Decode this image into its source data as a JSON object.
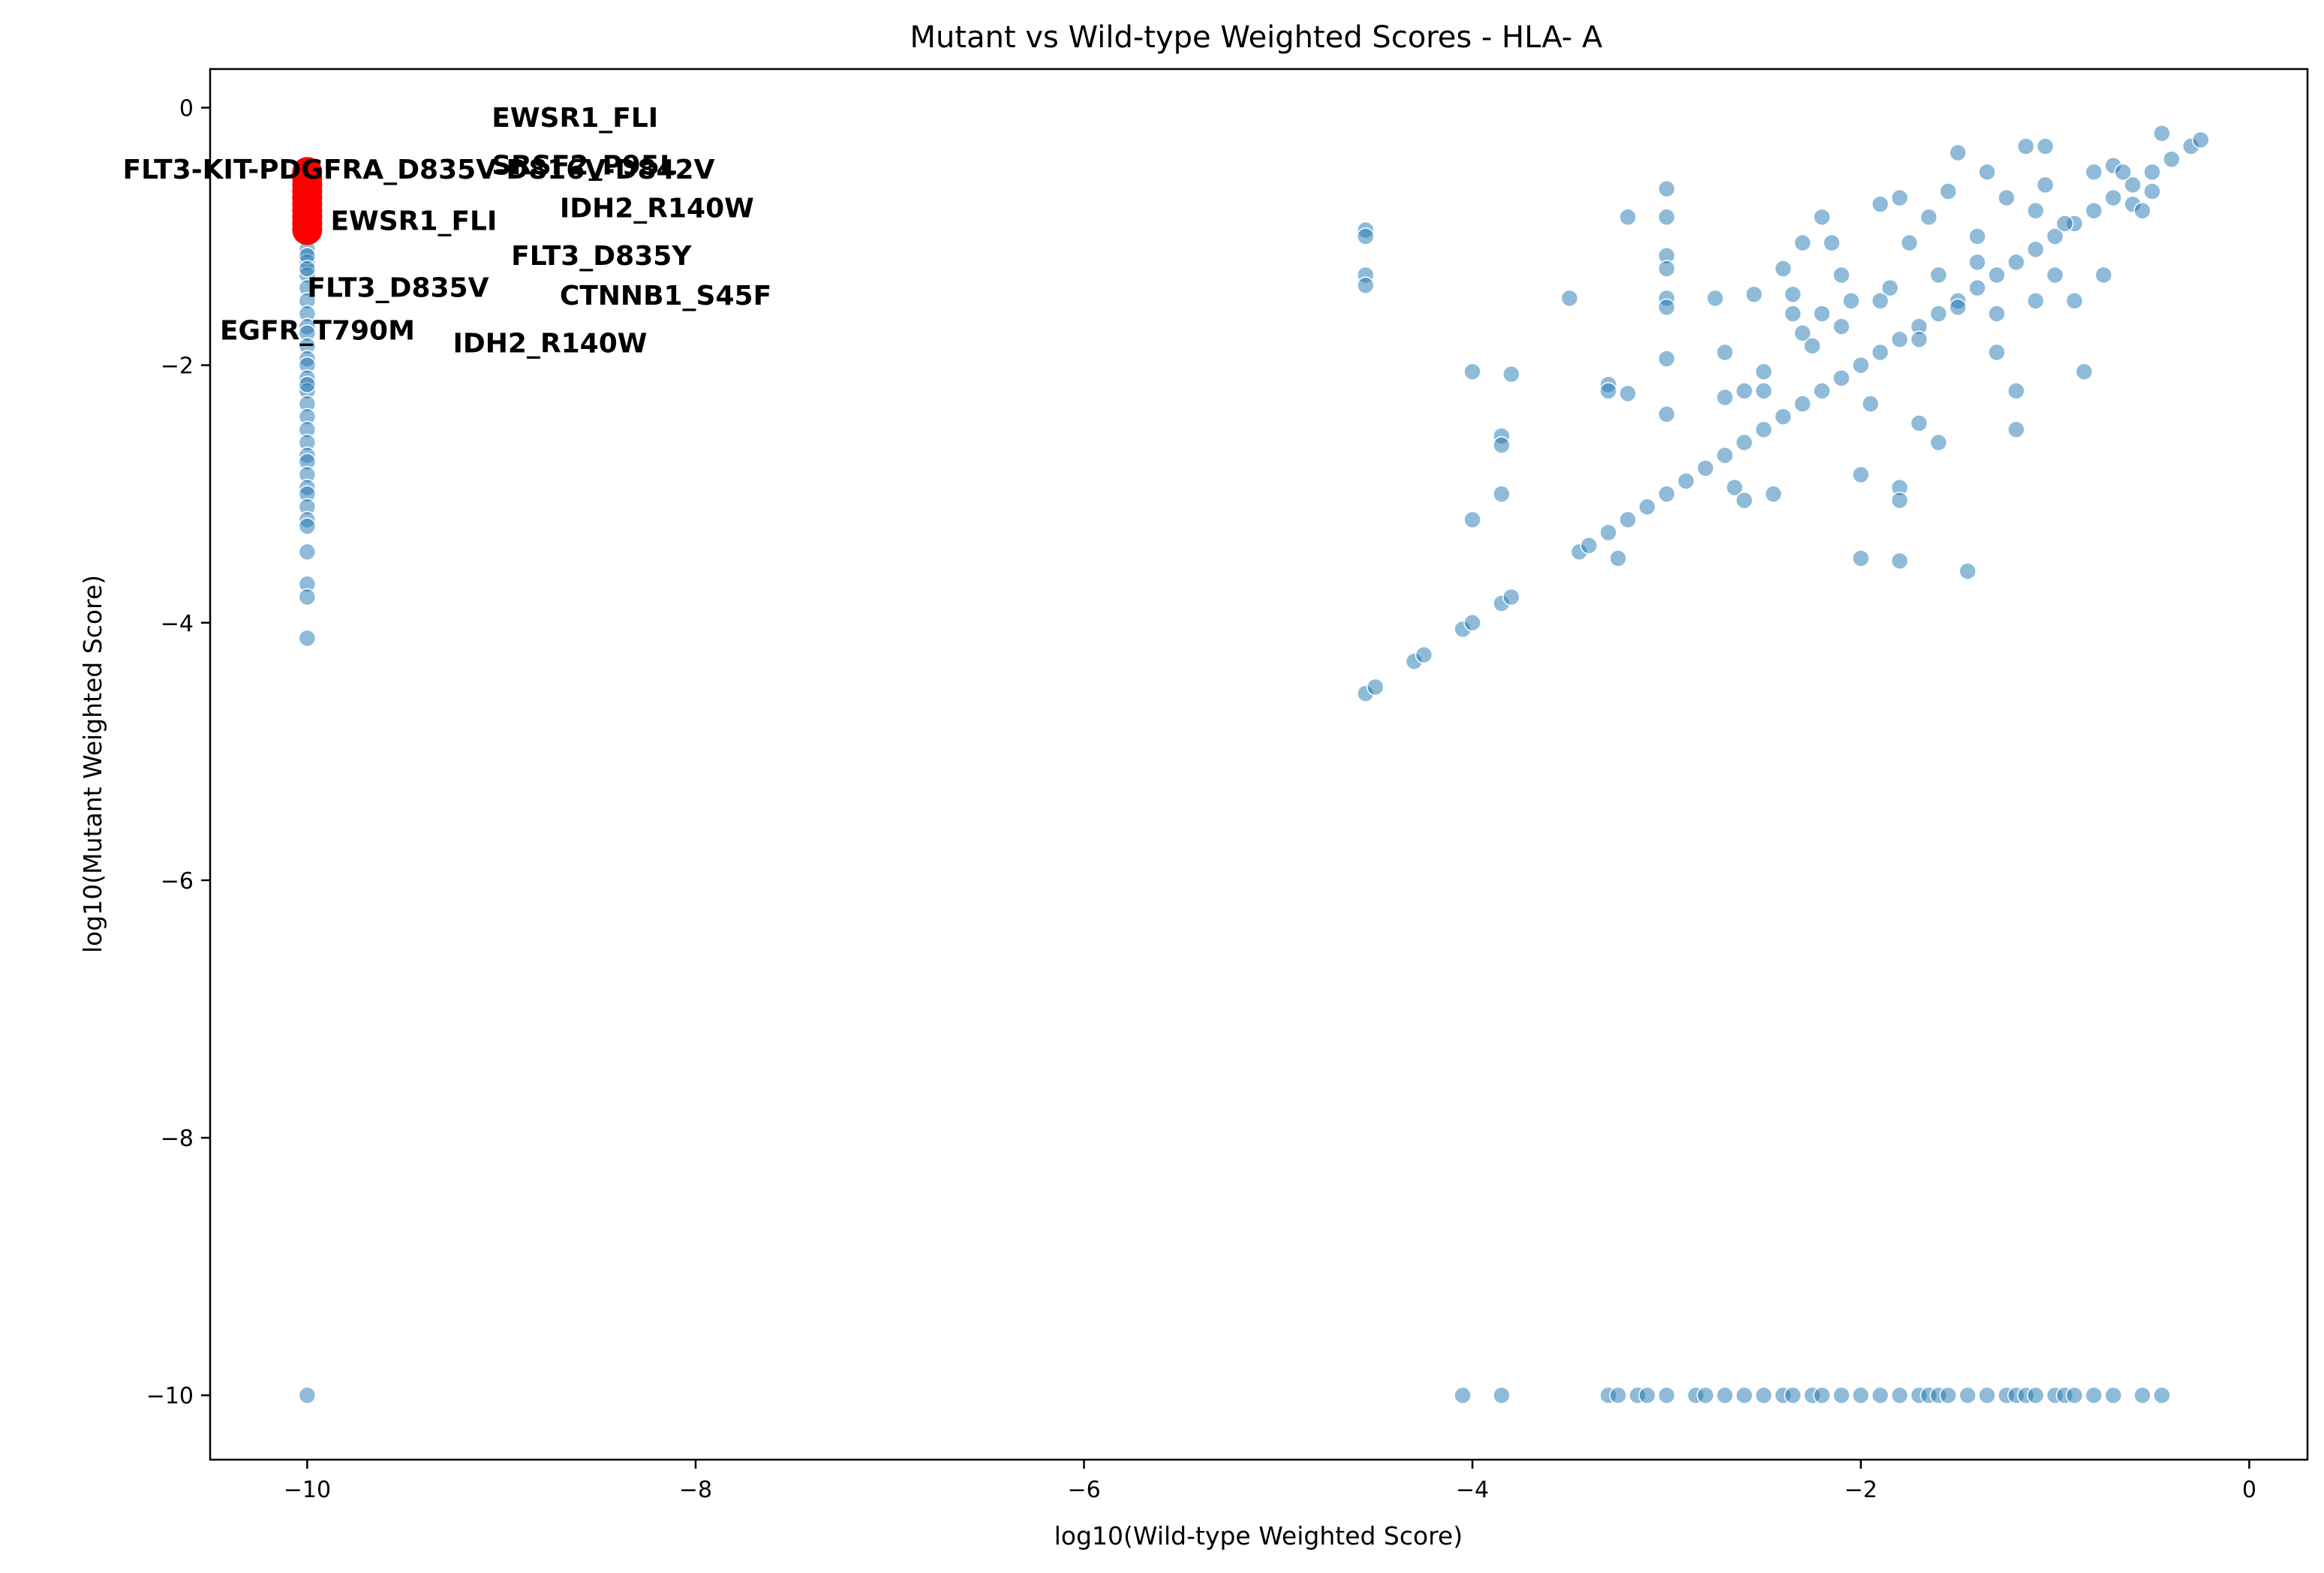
{
  "chart_data": {
    "type": "scatter",
    "title": "Mutant vs Wild-type Weighted Scores - HLA- A",
    "xlabel": "log10(Wild-type Weighted Score)",
    "ylabel": "log10(Mutant Weighted Score)",
    "xlim": [
      -10.5,
      0.3
    ],
    "ylim": [
      -10.5,
      0.3
    ],
    "x_ticks": [
      -10,
      -8,
      -6,
      -4,
      -2,
      0
    ],
    "y_ticks": [
      -10,
      -8,
      -6,
      -4,
      -2,
      0
    ],
    "x_tick_labels": [
      "−10",
      "−8",
      "−6",
      "−4",
      "−2",
      "0"
    ],
    "y_tick_labels": [
      "−10",
      "−8",
      "−6",
      "−4",
      "−2",
      "0"
    ],
    "grid": false,
    "legend": "none",
    "colors": {
      "points": "#1f77b4",
      "highlight": "#ff0000"
    },
    "series": [
      {
        "role": "all-peptides",
        "x_zero_column": [
          -10,
          -10,
          -10,
          -10,
          -10,
          -10,
          -10,
          -10,
          -10,
          -10,
          -10,
          -10,
          -10,
          -10,
          -10,
          -10,
          -10,
          -10,
          -10,
          -10,
          -10,
          -10,
          -10,
          -10,
          -10,
          -10,
          -10,
          -10,
          -10,
          -10,
          -10,
          -10,
          -10,
          -10
        ],
        "y_zero_column": [
          -1.0,
          -1.1,
          -1.2,
          -1.3,
          -1.4,
          -1.5,
          -1.6,
          -1.7,
          -1.75,
          -1.85,
          -1.95,
          -2.0,
          -2.1,
          -2.2,
          -2.3,
          -2.4,
          -2.5,
          -2.6,
          -2.7,
          -2.75,
          -2.85,
          -2.95,
          -3.0,
          -3.1,
          -3.2,
          -3.25,
          -3.45,
          -3.7,
          -3.8,
          -4.12,
          -10,
          -1.15,
          -1.25,
          -2.15
        ],
        "diagonal": [
          [
            -4.55,
            -4.55
          ],
          [
            -4.5,
            -4.5
          ],
          [
            -4.3,
            -4.3
          ],
          [
            -4.25,
            -4.25
          ],
          [
            -4.05,
            -4.05
          ],
          [
            -4.0,
            -4.0
          ],
          [
            -3.85,
            -3.85
          ],
          [
            -3.8,
            -3.8
          ],
          [
            -3.45,
            -3.45
          ],
          [
            -3.4,
            -3.4
          ],
          [
            -3.3,
            -3.3
          ],
          [
            -3.2,
            -3.2
          ],
          [
            -3.1,
            -3.1
          ],
          [
            -3.0,
            -3.0
          ],
          [
            -2.9,
            -2.9
          ],
          [
            -2.8,
            -2.8
          ],
          [
            -2.7,
            -2.7
          ],
          [
            -2.6,
            -2.6
          ],
          [
            -2.5,
            -2.5
          ],
          [
            -2.4,
            -2.4
          ],
          [
            -2.3,
            -2.3
          ],
          [
            -2.2,
            -2.2
          ],
          [
            -2.1,
            -2.1
          ],
          [
            -2.0,
            -2.0
          ],
          [
            -1.9,
            -1.9
          ],
          [
            -1.8,
            -1.8
          ],
          [
            -1.7,
            -1.7
          ],
          [
            -1.6,
            -1.6
          ],
          [
            -1.5,
            -1.5
          ],
          [
            -1.4,
            -1.4
          ],
          [
            -1.3,
            -1.3
          ],
          [
            -1.2,
            -1.2
          ],
          [
            -1.1,
            -1.1
          ],
          [
            -1.0,
            -1.0
          ],
          [
            -0.9,
            -0.9
          ],
          [
            -0.8,
            -0.8
          ],
          [
            -0.7,
            -0.7
          ],
          [
            -0.6,
            -0.6
          ],
          [
            -0.5,
            -0.5
          ],
          [
            -0.4,
            -0.4
          ],
          [
            -0.3,
            -0.3
          ],
          [
            -0.25,
            -0.25
          ]
        ],
        "scatter_upper": [
          [
            -4.55,
            -0.95
          ],
          [
            -4.55,
            -1.0
          ],
          [
            -4.55,
            -1.3
          ],
          [
            -4.55,
            -1.38
          ],
          [
            -4.0,
            -2.05
          ],
          [
            -4.0,
            -3.2
          ],
          [
            -3.85,
            -2.55
          ],
          [
            -3.85,
            -2.62
          ],
          [
            -3.85,
            -3.0
          ],
          [
            -3.8,
            -2.07
          ],
          [
            -3.5,
            -1.48
          ],
          [
            -3.3,
            -2.15
          ],
          [
            -3.3,
            -2.2
          ],
          [
            -3.25,
            -3.5
          ],
          [
            -3.2,
            -0.85
          ],
          [
            -3.2,
            -2.22
          ],
          [
            -3.0,
            -0.63
          ],
          [
            -3.0,
            -0.85
          ],
          [
            -3.0,
            -1.15
          ],
          [
            -3.0,
            -1.25
          ],
          [
            -3.0,
            -1.48
          ],
          [
            -3.0,
            -1.55
          ],
          [
            -3.0,
            -1.95
          ],
          [
            -3.0,
            -2.38
          ],
          [
            -2.75,
            -1.48
          ],
          [
            -2.7,
            -1.9
          ],
          [
            -2.7,
            -2.25
          ],
          [
            -2.65,
            -2.95
          ],
          [
            -2.6,
            -3.05
          ],
          [
            -2.55,
            -1.45
          ],
          [
            -2.5,
            -2.05
          ],
          [
            -2.5,
            -2.2
          ],
          [
            -2.45,
            -3.0
          ],
          [
            -2.4,
            -1.25
          ],
          [
            -2.35,
            -1.45
          ],
          [
            -2.35,
            -1.6
          ],
          [
            -2.3,
            -1.05
          ],
          [
            -2.3,
            -1.75
          ],
          [
            -2.25,
            -1.85
          ],
          [
            -2.2,
            -0.85
          ],
          [
            -2.15,
            -1.05
          ],
          [
            -2.1,
            -1.3
          ],
          [
            -2.1,
            -1.7
          ],
          [
            -2.05,
            -1.5
          ],
          [
            -2.0,
            -2.85
          ],
          [
            -2.0,
            -3.5
          ],
          [
            -1.95,
            -2.3
          ],
          [
            -1.9,
            -0.75
          ],
          [
            -1.85,
            -1.4
          ],
          [
            -1.8,
            -0.7
          ],
          [
            -1.8,
            -2.95
          ],
          [
            -1.8,
            -3.05
          ],
          [
            -1.8,
            -3.52
          ],
          [
            -1.75,
            -1.05
          ],
          [
            -1.7,
            -2.45
          ],
          [
            -1.65,
            -0.85
          ],
          [
            -1.6,
            -1.3
          ],
          [
            -1.6,
            -2.6
          ],
          [
            -1.55,
            -0.65
          ],
          [
            -1.5,
            -0.35
          ],
          [
            -1.5,
            -1.55
          ],
          [
            -1.45,
            -3.6
          ],
          [
            -1.4,
            -1.2
          ],
          [
            -1.35,
            -0.5
          ],
          [
            -1.3,
            -1.9
          ],
          [
            -1.25,
            -0.7
          ],
          [
            -1.2,
            -2.2
          ],
          [
            -1.2,
            -2.5
          ],
          [
            -1.15,
            -0.3
          ],
          [
            -1.1,
            -1.5
          ],
          [
            -1.05,
            -0.3
          ],
          [
            -1.05,
            -0.6
          ],
          [
            -1.0,
            -1.3
          ],
          [
            -0.95,
            -0.9
          ],
          [
            -0.9,
            -1.5
          ],
          [
            -0.85,
            -2.05
          ],
          [
            -0.8,
            -0.5
          ],
          [
            -0.75,
            -1.3
          ],
          [
            -0.7,
            -0.45
          ],
          [
            -0.6,
            -0.75
          ],
          [
            -0.5,
            -0.65
          ],
          [
            -0.45,
            -0.2
          ],
          [
            -0.55,
            -0.8
          ],
          [
            -1.7,
            -1.8
          ],
          [
            -1.4,
            -1.0
          ],
          [
            -1.3,
            -1.6
          ],
          [
            -2.2,
            -1.6
          ],
          [
            -2.6,
            -2.2
          ],
          [
            -1.9,
            -1.5
          ],
          [
            -1.1,
            -0.8
          ],
          [
            -0.65,
            -0.5
          ]
        ],
        "y_zero_row": [
          [
            -4.05,
            -10
          ],
          [
            -3.85,
            -10
          ],
          [
            -3.3,
            -10
          ],
          [
            -3.25,
            -10
          ],
          [
            -3.15,
            -10
          ],
          [
            -3.1,
            -10
          ],
          [
            -3.0,
            -10
          ],
          [
            -2.85,
            -10
          ],
          [
            -2.8,
            -10
          ],
          [
            -2.7,
            -10
          ],
          [
            -2.6,
            -10
          ],
          [
            -2.5,
            -10
          ],
          [
            -2.4,
            -10
          ],
          [
            -2.35,
            -10
          ],
          [
            -2.25,
            -10
          ],
          [
            -2.2,
            -10
          ],
          [
            -2.1,
            -10
          ],
          [
            -2.0,
            -10
          ],
          [
            -1.9,
            -10
          ],
          [
            -1.8,
            -10
          ],
          [
            -1.7,
            -10
          ],
          [
            -1.65,
            -10
          ],
          [
            -1.6,
            -10
          ],
          [
            -1.55,
            -10
          ],
          [
            -1.45,
            -10
          ],
          [
            -1.35,
            -10
          ],
          [
            -1.25,
            -10
          ],
          [
            -1.2,
            -10
          ],
          [
            -1.15,
            -10
          ],
          [
            -1.1,
            -10
          ],
          [
            -1.0,
            -10
          ],
          [
            -0.95,
            -10
          ],
          [
            -0.9,
            -10
          ],
          [
            -0.8,
            -10
          ],
          [
            -0.7,
            -10
          ],
          [
            -0.55,
            -10
          ],
          [
            -0.45,
            -10
          ]
        ]
      },
      {
        "role": "highlighted",
        "x": [
          -10,
          -10,
          -10,
          -10,
          -10,
          -10,
          -10,
          -10,
          -10,
          -10
        ],
        "y": [
          -0.5,
          -0.55,
          -0.6,
          -0.65,
          -0.7,
          -0.75,
          -0.8,
          -0.85,
          -0.9,
          -0.95
        ]
      }
    ],
    "annotations": [
      {
        "text": "EWSR1_FLI",
        "x": -9.05,
        "y": -0.15
      },
      {
        "text": "SRSF2_P95L",
        "x": -9.05,
        "y": -0.52
      },
      {
        "text": "FLT3-KIT-PDGFRA_D835V-D816V-D842V",
        "x": -10.95,
        "y": -0.55
      },
      {
        "text": "IDH2_R140W",
        "x": -8.7,
        "y": -0.85
      },
      {
        "text": "EWSR1_FLI",
        "x": -9.88,
        "y": -0.95
      },
      {
        "text": "FLT3_D835Y",
        "x": -8.95,
        "y": -1.22
      },
      {
        "text": "FLT3_D835V",
        "x": -10.0,
        "y": -1.47
      },
      {
        "text": "CTNNB1_S45F",
        "x": -8.7,
        "y": -1.53
      },
      {
        "text": "EGFR_T790M",
        "x": -10.45,
        "y": -1.8
      },
      {
        "text": "IDH2_R140W",
        "x": -9.25,
        "y": -1.9
      }
    ]
  }
}
